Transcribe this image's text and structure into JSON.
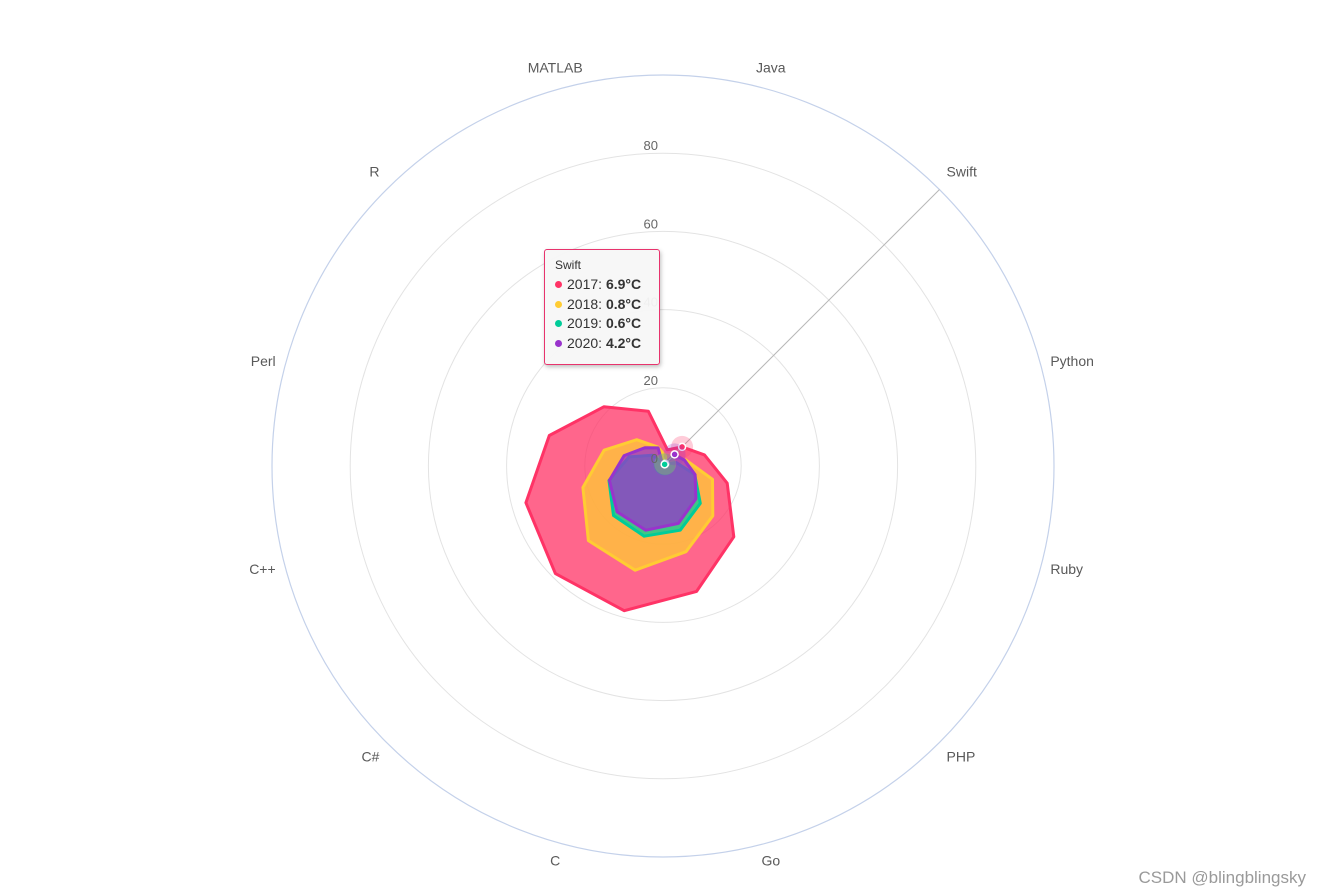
{
  "chart_data": {
    "type": "radar",
    "categories": [
      "Java",
      "Swift",
      "Python",
      "Ruby",
      "PHP",
      "Go",
      "C",
      "C#",
      "C++",
      "Perl",
      "R",
      "MATLAB"
    ],
    "series": [
      {
        "name": "2017",
        "color": "#ff3366",
        "values": [
          4.3,
          6.9,
          11.0,
          17.0,
          25.6,
          33.2,
          38.3,
          38.9,
          36.3,
          30.1,
          21.4,
          14.5
        ]
      },
      {
        "name": "2018",
        "color": "#ffcc33",
        "values": [
          2.6,
          0.8,
          6.0,
          13.1,
          18.0,
          22.7,
          27.6,
          27.0,
          21.2,
          15.6,
          9.5,
          5.0
        ]
      },
      {
        "name": "2019",
        "color": "#00cc99",
        "values": [
          -0.9,
          0.6,
          3.5,
          8.4,
          13.5,
          17.0,
          18.6,
          17.9,
          14.3,
          9.0,
          3.9,
          1.0
        ]
      },
      {
        "name": "2020",
        "color": "#9933cc",
        "values": [
          -0.2,
          4.2,
          5.7,
          8.5,
          11.9,
          15.2,
          17.0,
          16.6,
          14.2,
          10.3,
          6.6,
          4.8
        ]
      }
    ],
    "ylim": [
      0,
      100
    ],
    "ticks": [
      0,
      20,
      40,
      60,
      80
    ],
    "grid": true,
    "legend": "none",
    "unit": "°C",
    "highlight_category": "Swift"
  },
  "tooltip": {
    "title": "Swift",
    "rows": [
      {
        "label": "2017: ",
        "value": "6.9°C",
        "color": "#ff3366"
      },
      {
        "label": "2018: ",
        "value": "0.8°C",
        "color": "#ffcc33"
      },
      {
        "label": "2019: ",
        "value": "0.6°C",
        "color": "#00cc99"
      },
      {
        "label": "2020: ",
        "value": "4.2°C",
        "color": "#9933cc"
      }
    ]
  },
  "watermark": "CSDN @blingblingsky"
}
